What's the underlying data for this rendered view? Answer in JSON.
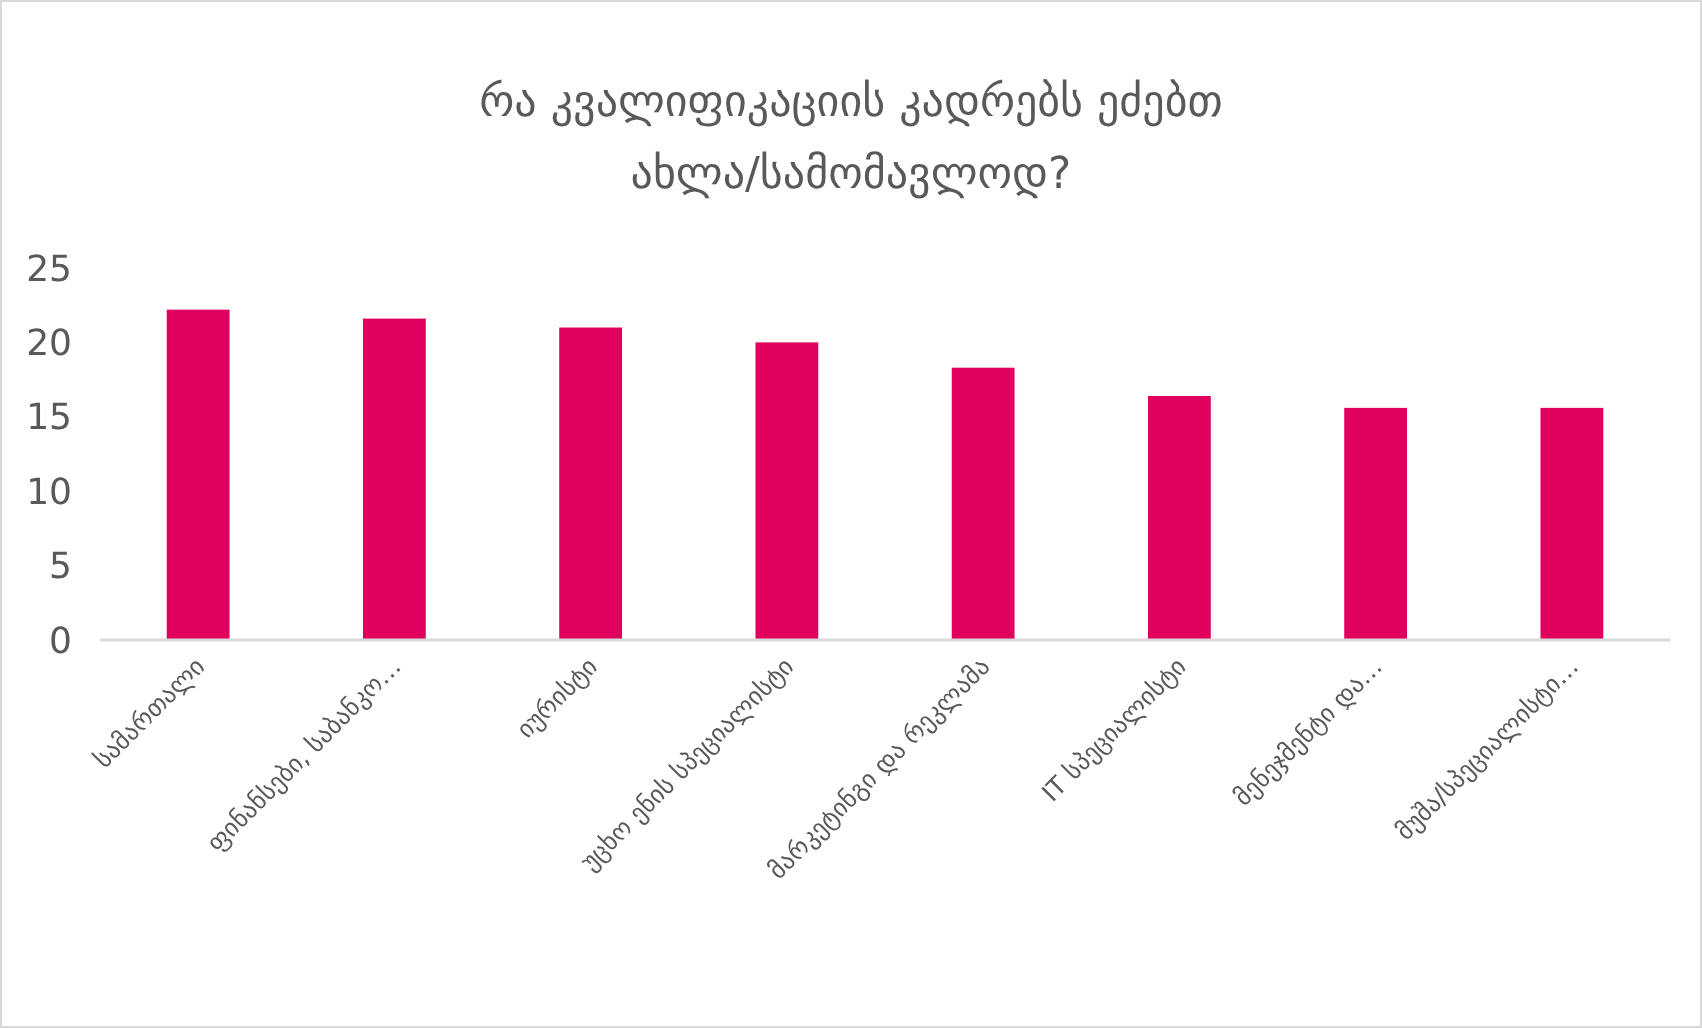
{
  "chart_data": {
    "type": "bar",
    "title": "რა კვალიფიკაციის კადრებს ეძებთ ახლა/სამომავლოდ?",
    "categories": [
      "სამართალი",
      "ფინანსები, საბანკო…",
      "იურისტი",
      "უცხო ენის სპეციალისტი",
      "მარკეტინგი და რეკლამა",
      "IT სპეციალისტი",
      "მენეჯმენტი და…",
      "მუშა/სპეციალისტი…"
    ],
    "values": [
      22.2,
      21.6,
      21.0,
      20.0,
      18.3,
      16.4,
      15.6,
      15.6
    ],
    "color": "#e0005e",
    "ylim": [
      0,
      25
    ],
    "yticks": [
      0,
      5,
      10,
      15,
      20,
      25
    ],
    "grid": false
  }
}
